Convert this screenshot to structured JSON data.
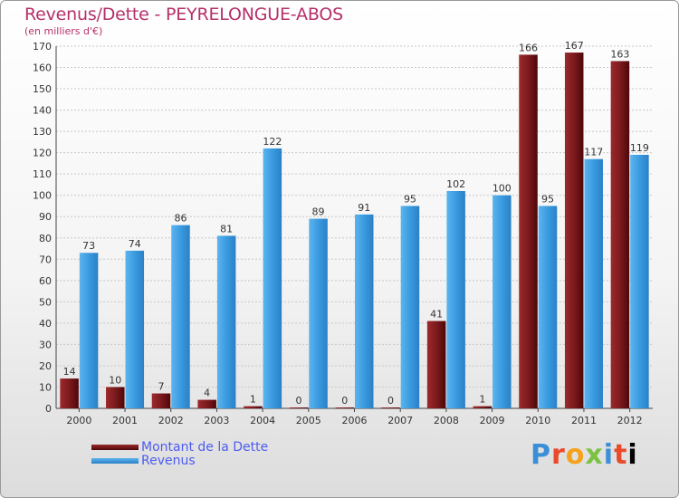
{
  "title": "Revenus/Dette - PEYRELONGUE-ABOS",
  "subtitle": "(en milliers d'€)",
  "brand": "Proxiti",
  "colors": {
    "title": "#b5306a",
    "dette": "#6b0d12",
    "revenus": "#2e8fd8",
    "legend_text": "#4d5cf0"
  },
  "chart_data": {
    "type": "bar",
    "title": "Revenus/Dette - PEYRELONGUE-ABOS",
    "subtitle": "(en milliers d'€)",
    "categories": [
      "2000",
      "2001",
      "2002",
      "2003",
      "2004",
      "2005",
      "2006",
      "2007",
      "2008",
      "2009",
      "2010",
      "2011",
      "2012"
    ],
    "series": [
      {
        "name": "Montant de la Dette",
        "values": [
          14,
          10,
          7,
          4,
          1,
          0,
          0,
          0,
          41,
          1,
          166,
          167,
          163
        ]
      },
      {
        "name": "Revenus",
        "values": [
          73,
          74,
          86,
          81,
          122,
          89,
          91,
          95,
          102,
          100,
          95,
          117,
          119
        ]
      }
    ],
    "ylim": [
      0,
      170
    ],
    "yticks": [
      0,
      10,
      20,
      30,
      40,
      50,
      60,
      70,
      80,
      90,
      100,
      110,
      120,
      130,
      140,
      150,
      160,
      170
    ],
    "grid": true,
    "legend": "bottom-left"
  }
}
